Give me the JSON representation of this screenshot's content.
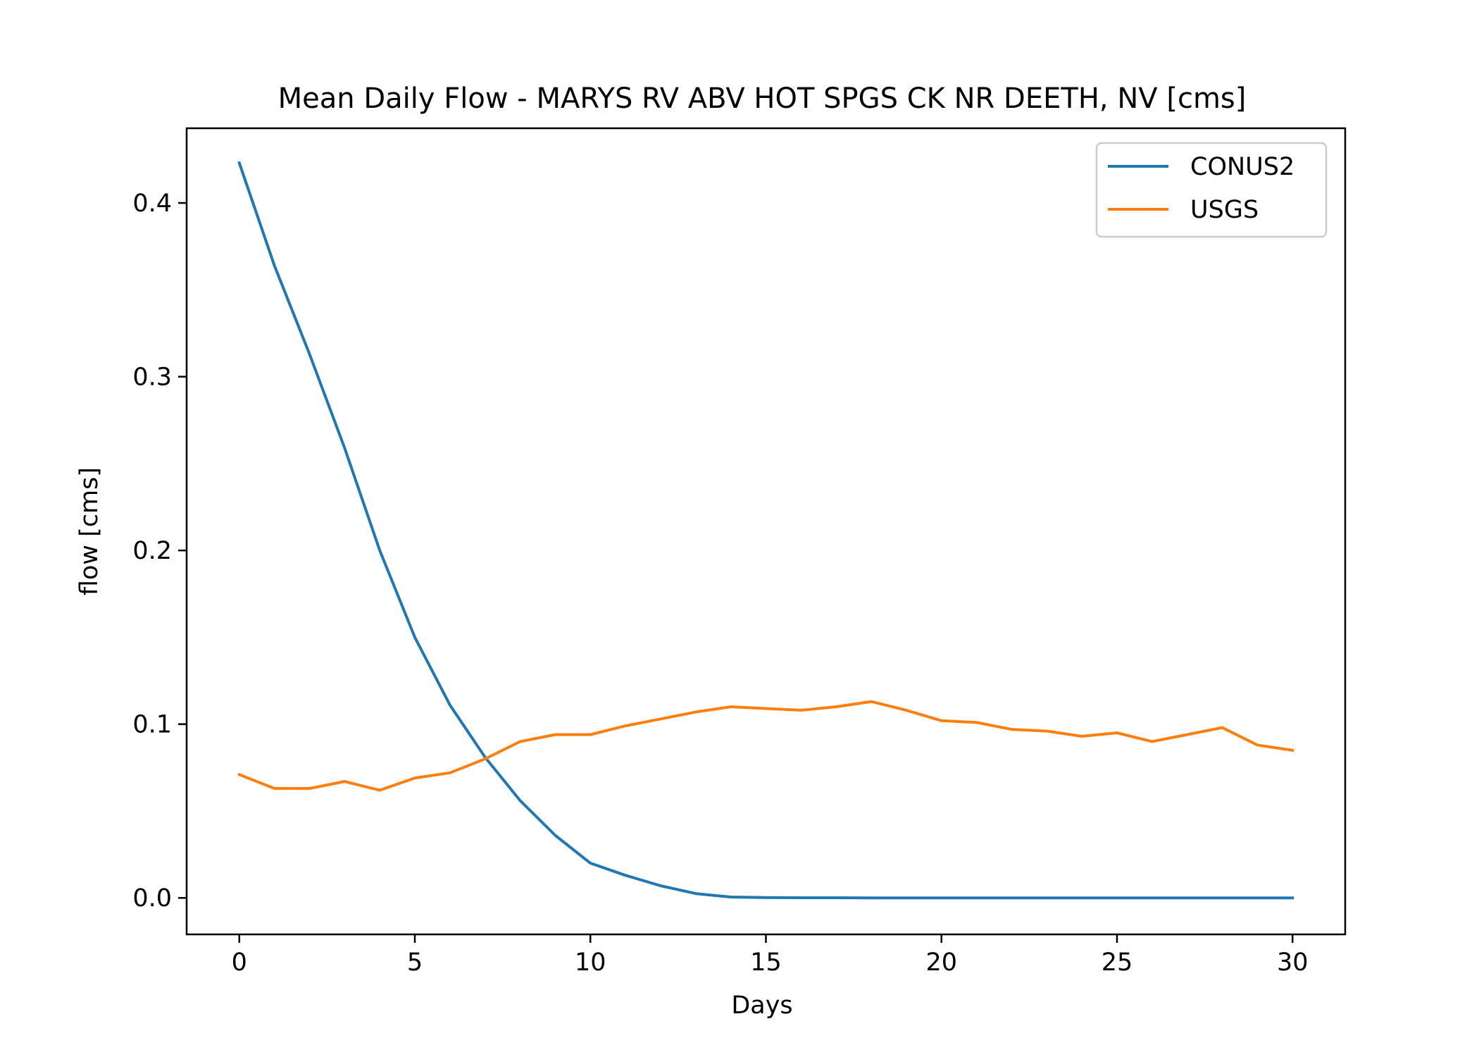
{
  "chart_data": {
    "type": "line",
    "title": "Mean Daily Flow - MARYS RV ABV HOT SPGS CK NR DEETH, NV [cms]",
    "xlabel": "Days",
    "ylabel": "flow [cms]",
    "xlim": [
      -1.5,
      31.5
    ],
    "ylim": [
      -0.021,
      0.443
    ],
    "xticks": [
      0,
      5,
      10,
      15,
      20,
      25,
      30
    ],
    "yticks": [
      0.0,
      0.1,
      0.2,
      0.3,
      0.4
    ],
    "ytick_labels": [
      "0.0",
      "0.1",
      "0.2",
      "0.3",
      "0.4"
    ],
    "grid": false,
    "legend_position": "top-right",
    "x": [
      0,
      1,
      2,
      3,
      4,
      5,
      6,
      7,
      8,
      9,
      10,
      11,
      12,
      13,
      14,
      15,
      16,
      17,
      18,
      19,
      20,
      21,
      22,
      23,
      24,
      25,
      26,
      27,
      28,
      29,
      30
    ],
    "series": [
      {
        "name": "CONUS2",
        "color": "#1f77b4",
        "values": [
          0.423,
          0.364,
          0.313,
          0.259,
          0.2,
          0.15,
          0.111,
          0.081,
          0.056,
          0.036,
          0.02,
          0.013,
          0.007,
          0.0025,
          0.0005,
          0.0002,
          0.0001,
          0.0001,
          0.0,
          0.0,
          0.0,
          0.0,
          0.0,
          0.0,
          0.0,
          0.0,
          0.0,
          0.0,
          0.0,
          0.0,
          0.0
        ]
      },
      {
        "name": "USGS",
        "color": "#ff7f0e",
        "values": [
          0.071,
          0.063,
          0.063,
          0.067,
          0.062,
          0.069,
          0.072,
          0.08,
          0.09,
          0.094,
          0.094,
          0.099,
          0.103,
          0.107,
          0.11,
          0.109,
          0.108,
          0.11,
          0.113,
          0.108,
          0.102,
          0.101,
          0.097,
          0.096,
          0.093,
          0.095,
          0.09,
          0.094,
          0.098,
          0.088,
          0.085
        ]
      }
    ]
  }
}
